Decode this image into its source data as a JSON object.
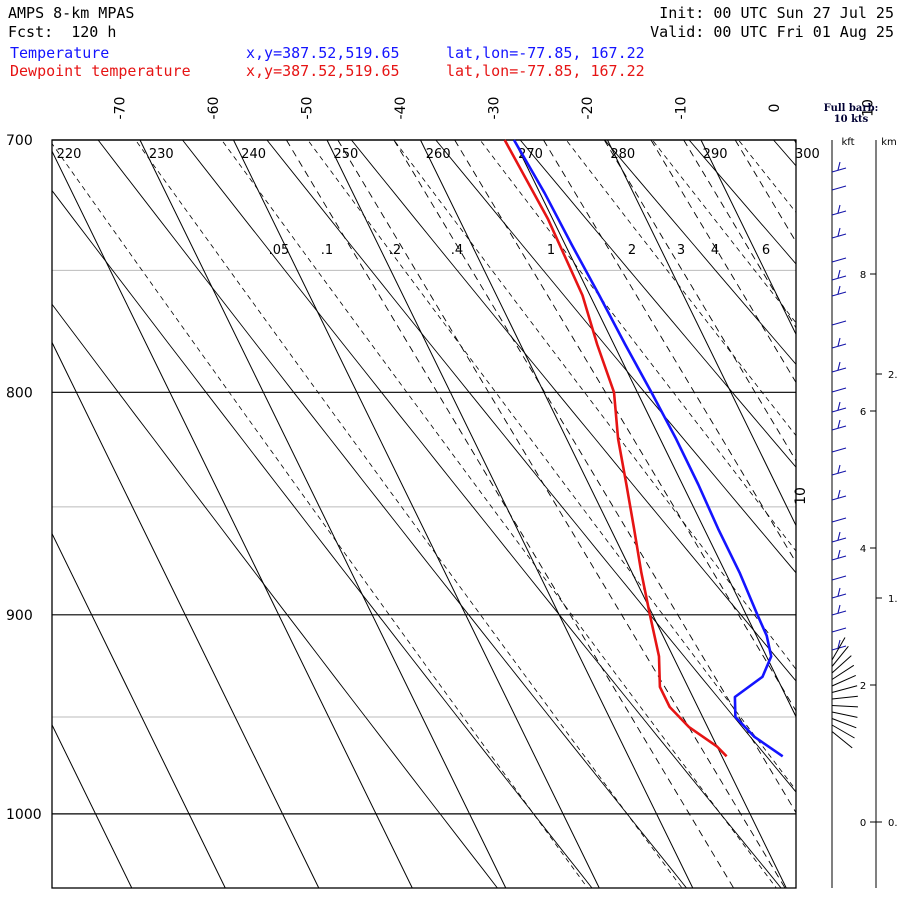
{
  "header": {
    "model": "AMPS 8-km MPAS",
    "forecast": "Fcst:  120 h",
    "init": "Init: 00 UTC Sun 27 Jul 25",
    "valid": "Valid: 00 UTC Fri 01 Aug 25",
    "temp_label": "Temperature",
    "dew_label": "Dewpoint temperature",
    "xy": "x,y=387.52,519.65",
    "latlon": "lat,lon=-77.85, 167.22"
  },
  "colors": {
    "temperature": "#1414ff",
    "dewpoint": "#e61414"
  },
  "barb_note": [
    "Full barb:",
    "10 kts"
  ],
  "chart_data": {
    "type": "line",
    "kind": "skew-T log-p",
    "x_range_temperature_c": [
      -80,
      10
    ],
    "pressure_range_hpa": [
      1040,
      700
    ],
    "y_scale": "log",
    "pressure_ticks": [
      "700",
      "800",
      "900",
      "1000"
    ],
    "temp_ticks": [
      "-70",
      "-60",
      "-50",
      "-40",
      "-30",
      "-20",
      "-10",
      "0",
      "10"
    ],
    "theta_labels": [
      "220",
      "230",
      "240",
      "250",
      "260",
      "270",
      "280",
      "290",
      "300"
    ],
    "mixing_ratio_labels": [
      ".05",
      ".1",
      ".2",
      ".4",
      "1",
      "2",
      "3",
      "4",
      "6"
    ],
    "series": [
      {
        "name": "Temperature",
        "p": [
          700,
          720,
          740,
          760,
          780,
          800,
          820,
          840,
          860,
          880,
          900,
          910,
          920,
          930,
          940,
          950,
          960,
          970
        ],
        "t": [
          -30,
          -29.5,
          -29.3,
          -29.0,
          -28.8,
          -28.5,
          -28.3,
          -28.3,
          -28.5,
          -28.5,
          -28.8,
          -28.9,
          -29.5,
          -31.5,
          -35.5,
          -36.5,
          -35.5,
          -33.5
        ]
      },
      {
        "name": "Dewpoint temperature",
        "p": [
          700,
          730,
          760,
          780,
          800,
          820,
          840,
          860,
          880,
          900,
          920,
          935,
          945,
          955,
          965,
          970
        ],
        "t": [
          -31,
          -30.5,
          -30.8,
          -31.8,
          -32.5,
          -34.5,
          -36,
          -37.5,
          -39,
          -40.3,
          -41.5,
          -43,
          -43,
          -42,
          -40,
          -39.5
        ]
      }
    ],
    "height_axis": {
      "kft_label": "kft",
      "km_label": "km",
      "kft_ticks": [
        {
          "value": 0,
          "label": "0"
        },
        {
          "value": 2,
          "label": "2"
        },
        {
          "value": 4,
          "label": "4"
        },
        {
          "value": 6,
          "label": "6"
        },
        {
          "value": 8,
          "label": "8"
        }
      ],
      "km_ticks": [
        {
          "value": 0,
          "label": "0."
        },
        {
          "value": 1,
          "label": "1."
        },
        {
          "value": 2,
          "label": "2."
        }
      ]
    }
  }
}
